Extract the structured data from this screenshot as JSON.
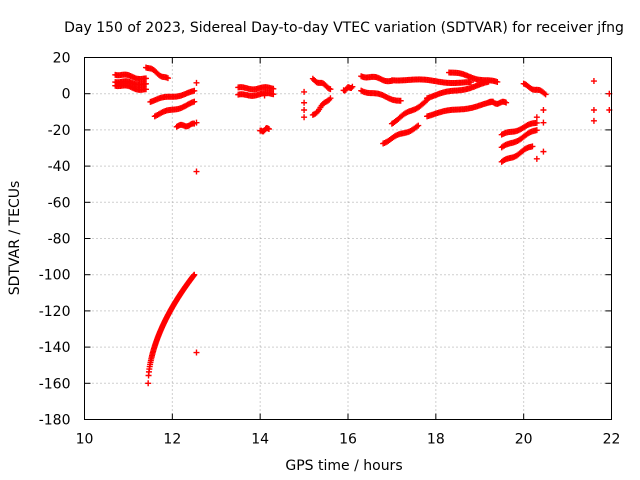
{
  "chart_data": {
    "type": "scatter",
    "title": "Day 150 of 2023, Sidereal Day-to-day VTEC variation (SDTVAR) for receiver jfng",
    "xlabel": "GPS time / hours",
    "ylabel": "SDTVAR / TECUs",
    "xlim": [
      10,
      22
    ],
    "ylim": [
      -180,
      20
    ],
    "xticks": [
      10,
      12,
      14,
      16,
      18,
      20,
      22
    ],
    "yticks": [
      20,
      0,
      -20,
      -40,
      -60,
      -80,
      -100,
      -120,
      -140,
      -160,
      -180
    ],
    "grid": true,
    "marker": "+",
    "color": "#ff0000",
    "segments": [
      {
        "x0": 10.7,
        "x1": 11.4,
        "y0": 11,
        "y1": 8
      },
      {
        "x0": 10.7,
        "x1": 11.4,
        "y0": 7,
        "y1": 5
      },
      {
        "x0": 10.7,
        "x1": 11.4,
        "y0": 5,
        "y1": 2
      },
      {
        "x0": 11.4,
        "x1": 11.9,
        "y0": 15,
        "y1": 8
      },
      {
        "x0": 11.5,
        "x1": 12.5,
        "y0": -4,
        "y1": 1
      },
      {
        "x0": 11.6,
        "x1": 12.5,
        "y0": -12,
        "y1": -5
      },
      {
        "x0": 12.1,
        "x1": 12.5,
        "y0": -18,
        "y1": -17
      },
      {
        "x0": 13.5,
        "x1": 14.3,
        "y0": 3,
        "y1": 3
      },
      {
        "x0": 13.5,
        "x1": 14.3,
        "y0": -1,
        "y1": 0
      },
      {
        "x0": 14.0,
        "x1": 14.2,
        "y0": -21,
        "y1": -19
      },
      {
        "x0": 15.2,
        "x1": 15.6,
        "y0": -12,
        "y1": -2
      },
      {
        "x0": 15.2,
        "x1": 15.6,
        "y0": 8,
        "y1": 3
      },
      {
        "x0": 15.9,
        "x1": 16.1,
        "y0": 2,
        "y1": 4
      },
      {
        "x0": 16.3,
        "x1": 17.0,
        "y0": 10,
        "y1": 7
      },
      {
        "x0": 16.3,
        "x1": 17.2,
        "y0": 2,
        "y1": -4
      },
      {
        "x0": 16.8,
        "x1": 17.6,
        "y0": -27,
        "y1": -18
      },
      {
        "x0": 17.0,
        "x1": 17.8,
        "y0": -16,
        "y1": -4
      },
      {
        "x0": 17.0,
        "x1": 18.8,
        "y0": 8,
        "y1": 6
      },
      {
        "x0": 17.8,
        "x1": 19.3,
        "y0": -12,
        "y1": -5
      },
      {
        "x0": 17.8,
        "x1": 19.2,
        "y0": -2,
        "y1": 6
      },
      {
        "x0": 18.3,
        "x1": 19.4,
        "y0": 12,
        "y1": 6
      },
      {
        "x0": 19.2,
        "x1": 19.6,
        "y0": -5,
        "y1": -5
      },
      {
        "x0": 19.5,
        "x1": 20.3,
        "y0": -23,
        "y1": -16
      },
      {
        "x0": 19.5,
        "x1": 20.3,
        "y0": -30,
        "y1": -20
      },
      {
        "x0": 19.5,
        "x1": 20.2,
        "y0": -38,
        "y1": -29
      },
      {
        "x0": 20.0,
        "x1": 20.5,
        "y0": 5,
        "y1": 0
      }
    ],
    "curves": [
      {
        "name": "descending arc",
        "x0": 11.45,
        "x1": 12.5,
        "y0": -160,
        "y1": -100
      }
    ],
    "points": [
      {
        "x": 12.55,
        "y": 6
      },
      {
        "x": 12.55,
        "y": -16
      },
      {
        "x": 12.55,
        "y": -43
      },
      {
        "x": 12.55,
        "y": -143
      },
      {
        "x": 14.1,
        "y": -1
      },
      {
        "x": 15.0,
        "y": 1
      },
      {
        "x": 15.0,
        "y": -5
      },
      {
        "x": 15.0,
        "y": -9
      },
      {
        "x": 15.0,
        "y": -13
      },
      {
        "x": 20.3,
        "y": -13
      },
      {
        "x": 20.45,
        "y": -9
      },
      {
        "x": 20.45,
        "y": -16
      },
      {
        "x": 20.45,
        "y": -32
      },
      {
        "x": 20.3,
        "y": -36
      },
      {
        "x": 21.6,
        "y": 7
      },
      {
        "x": 21.6,
        "y": -9
      },
      {
        "x": 21.6,
        "y": -15
      },
      {
        "x": 21.95,
        "y": 0
      },
      {
        "x": 21.95,
        "y": -9
      }
    ]
  }
}
